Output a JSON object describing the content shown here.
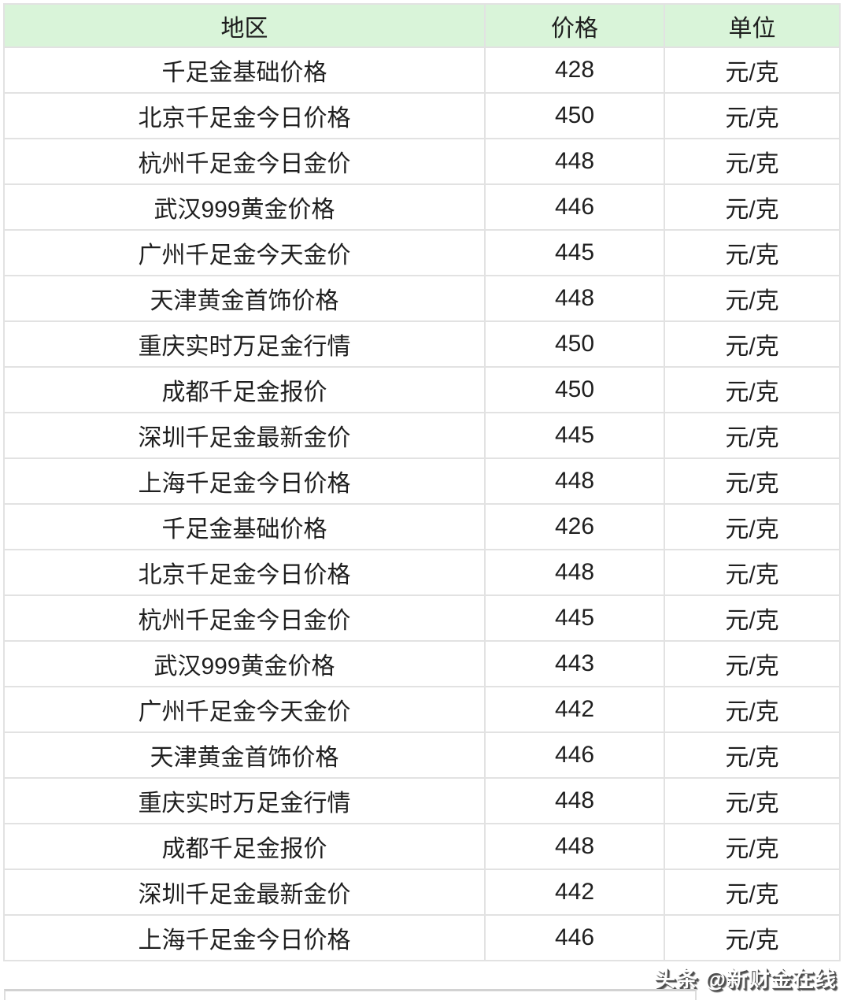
{
  "table": {
    "columns": {
      "region": "地区",
      "price": "价格",
      "unit": "单位"
    },
    "rows": [
      {
        "region": "千足金基础价格",
        "price": "428",
        "unit": "元/克"
      },
      {
        "region": "北京千足金今日价格",
        "price": "450",
        "unit": "元/克"
      },
      {
        "region": "杭州千足金今日金价",
        "price": "448",
        "unit": "元/克"
      },
      {
        "region": "武汉999黄金价格",
        "price": "446",
        "unit": "元/克"
      },
      {
        "region": "广州千足金今天金价",
        "price": "445",
        "unit": "元/克"
      },
      {
        "region": "天津黄金首饰价格",
        "price": "448",
        "unit": "元/克"
      },
      {
        "region": "重庆实时万足金行情",
        "price": "450",
        "unit": "元/克"
      },
      {
        "region": "成都千足金报价",
        "price": "450",
        "unit": "元/克"
      },
      {
        "region": "深圳千足金最新金价",
        "price": "445",
        "unit": "元/克"
      },
      {
        "region": "上海千足金今日价格",
        "price": "448",
        "unit": "元/克"
      },
      {
        "region": "千足金基础价格",
        "price": "426",
        "unit": "元/克"
      },
      {
        "region": "北京千足金今日价格",
        "price": "448",
        "unit": "元/克"
      },
      {
        "region": "杭州千足金今日金价",
        "price": "445",
        "unit": "元/克"
      },
      {
        "region": "武汉999黄金价格",
        "price": "443",
        "unit": "元/克"
      },
      {
        "region": "广州千足金今天金价",
        "price": "442",
        "unit": "元/克"
      },
      {
        "region": "天津黄金首饰价格",
        "price": "446",
        "unit": "元/克"
      },
      {
        "region": "重庆实时万足金行情",
        "price": "448",
        "unit": "元/克"
      },
      {
        "region": "成都千足金报价",
        "price": "448",
        "unit": "元/克"
      },
      {
        "region": "深圳千足金最新金价",
        "price": "442",
        "unit": "元/克"
      },
      {
        "region": "上海千足金今日价格",
        "price": "446",
        "unit": "元/克"
      }
    ]
  },
  "watermark": "头条 @新财金在线",
  "colors": {
    "header_bg": "#d9f4d9",
    "border": "#e2e2e2",
    "text": "#1f1f1f",
    "watermark_text": "#ffffff",
    "watermark_shadow": "#4e4e4e"
  }
}
